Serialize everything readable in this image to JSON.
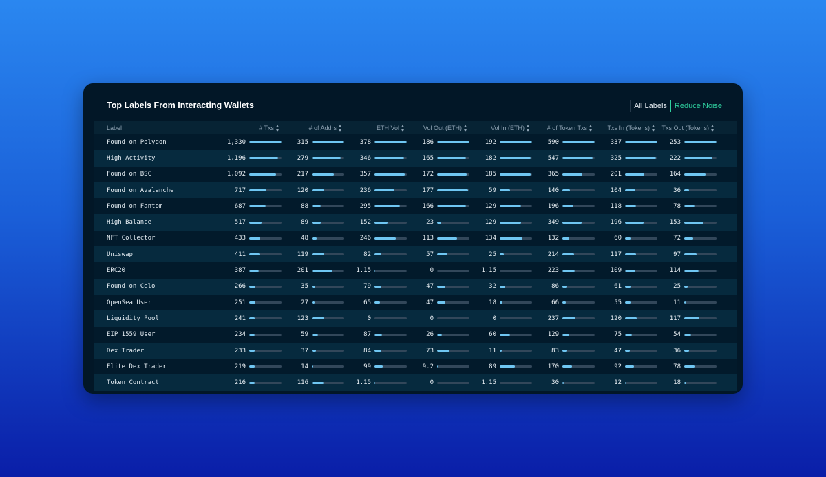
{
  "card": {
    "title": "Top Labels From Interacting Wallets",
    "toggle_all": "All Labels",
    "toggle_reduce": "Reduce Noise"
  },
  "columns": [
    {
      "key": "label",
      "name": "Label"
    },
    {
      "key": "txs",
      "name": "# Txs"
    },
    {
      "key": "addrs",
      "name": "# of Addrs"
    },
    {
      "key": "ethvol",
      "name": "ETH Vol"
    },
    {
      "key": "volout",
      "name": "Vol Out (ETH)"
    },
    {
      "key": "volin",
      "name": "Vol In (ETH)"
    },
    {
      "key": "tokentxs",
      "name": "# of Token Txs"
    },
    {
      "key": "txsin",
      "name": "Txs In (Tokens)"
    },
    {
      "key": "txsout",
      "name": "Txs Out (Tokens)"
    }
  ],
  "rows": [
    {
      "label": "Found on Polygon",
      "cells": [
        {
          "v": "1,330",
          "f": 1.0
        },
        {
          "v": "315",
          "f": 1.0
        },
        {
          "v": "378",
          "f": 1.0
        },
        {
          "v": "186",
          "f": 1.0
        },
        {
          "v": "192",
          "f": 1.0
        },
        {
          "v": "590",
          "f": 1.0
        },
        {
          "v": "337",
          "f": 1.0
        },
        {
          "v": "253",
          "f": 1.0
        }
      ]
    },
    {
      "label": "High Activity",
      "cells": [
        {
          "v": "1,196",
          "f": 0.9
        },
        {
          "v": "279",
          "f": 0.89
        },
        {
          "v": "346",
          "f": 0.92
        },
        {
          "v": "165",
          "f": 0.89
        },
        {
          "v": "182",
          "f": 0.95
        },
        {
          "v": "547",
          "f": 0.93
        },
        {
          "v": "325",
          "f": 0.96
        },
        {
          "v": "222",
          "f": 0.88
        }
      ]
    },
    {
      "label": "Found on BSC",
      "cells": [
        {
          "v": "1,092",
          "f": 0.82
        },
        {
          "v": "217",
          "f": 0.69
        },
        {
          "v": "357",
          "f": 0.94
        },
        {
          "v": "172",
          "f": 0.92
        },
        {
          "v": "185",
          "f": 0.96
        },
        {
          "v": "365",
          "f": 0.62
        },
        {
          "v": "201",
          "f": 0.6
        },
        {
          "v": "164",
          "f": 0.65
        }
      ]
    },
    {
      "label": "Found on Avalanche",
      "cells": [
        {
          "v": "717",
          "f": 0.54
        },
        {
          "v": "120",
          "f": 0.38
        },
        {
          "v": "236",
          "f": 0.62
        },
        {
          "v": "177",
          "f": 0.95
        },
        {
          "v": "59",
          "f": 0.31
        },
        {
          "v": "140",
          "f": 0.24
        },
        {
          "v": "104",
          "f": 0.31
        },
        {
          "v": "36",
          "f": 0.14
        }
      ]
    },
    {
      "label": "Found on Fantom",
      "cells": [
        {
          "v": "687",
          "f": 0.52
        },
        {
          "v": "88",
          "f": 0.28
        },
        {
          "v": "295",
          "f": 0.78
        },
        {
          "v": "166",
          "f": 0.89
        },
        {
          "v": "129",
          "f": 0.67
        },
        {
          "v": "196",
          "f": 0.33
        },
        {
          "v": "118",
          "f": 0.35
        },
        {
          "v": "78",
          "f": 0.31
        }
      ]
    },
    {
      "label": "High Balance",
      "cells": [
        {
          "v": "517",
          "f": 0.39
        },
        {
          "v": "89",
          "f": 0.28
        },
        {
          "v": "152",
          "f": 0.4
        },
        {
          "v": "23",
          "f": 0.12
        },
        {
          "v": "129",
          "f": 0.67
        },
        {
          "v": "349",
          "f": 0.59
        },
        {
          "v": "196",
          "f": 0.58
        },
        {
          "v": "153",
          "f": 0.6
        }
      ]
    },
    {
      "label": "NFT Collector",
      "cells": [
        {
          "v": "433",
          "f": 0.33
        },
        {
          "v": "48",
          "f": 0.15
        },
        {
          "v": "246",
          "f": 0.65
        },
        {
          "v": "113",
          "f": 0.61
        },
        {
          "v": "134",
          "f": 0.7
        },
        {
          "v": "132",
          "f": 0.22
        },
        {
          "v": "60",
          "f": 0.18
        },
        {
          "v": "72",
          "f": 0.28
        }
      ]
    },
    {
      "label": "Uniswap",
      "cells": [
        {
          "v": "411",
          "f": 0.31
        },
        {
          "v": "119",
          "f": 0.38
        },
        {
          "v": "82",
          "f": 0.22
        },
        {
          "v": "57",
          "f": 0.31
        },
        {
          "v": "25",
          "f": 0.13
        },
        {
          "v": "214",
          "f": 0.36
        },
        {
          "v": "117",
          "f": 0.35
        },
        {
          "v": "97",
          "f": 0.38
        }
      ]
    },
    {
      "label": "ERC20",
      "cells": [
        {
          "v": "387",
          "f": 0.29
        },
        {
          "v": "201",
          "f": 0.64
        },
        {
          "v": "1.15",
          "f": 0.003
        },
        {
          "v": "0",
          "f": 0.0
        },
        {
          "v": "1.15",
          "f": 0.006
        },
        {
          "v": "223",
          "f": 0.38
        },
        {
          "v": "109",
          "f": 0.32
        },
        {
          "v": "114",
          "f": 0.45
        }
      ]
    },
    {
      "label": "Found on Celo",
      "cells": [
        {
          "v": "266",
          "f": 0.2
        },
        {
          "v": "35",
          "f": 0.11
        },
        {
          "v": "79",
          "f": 0.21
        },
        {
          "v": "47",
          "f": 0.25
        },
        {
          "v": "32",
          "f": 0.17
        },
        {
          "v": "86",
          "f": 0.15
        },
        {
          "v": "61",
          "f": 0.18
        },
        {
          "v": "25",
          "f": 0.1
        }
      ]
    },
    {
      "label": "OpenSea User",
      "cells": [
        {
          "v": "251",
          "f": 0.19
        },
        {
          "v": "27",
          "f": 0.09
        },
        {
          "v": "65",
          "f": 0.17
        },
        {
          "v": "47",
          "f": 0.25
        },
        {
          "v": "18",
          "f": 0.09
        },
        {
          "v": "66",
          "f": 0.11
        },
        {
          "v": "55",
          "f": 0.16
        },
        {
          "v": "11",
          "f": 0.04
        }
      ]
    },
    {
      "label": "Liquidity Pool",
      "cells": [
        {
          "v": "241",
          "f": 0.18
        },
        {
          "v": "123",
          "f": 0.39
        },
        {
          "v": "0",
          "f": 0.0
        },
        {
          "v": "0",
          "f": 0.0
        },
        {
          "v": "0",
          "f": 0.0
        },
        {
          "v": "237",
          "f": 0.4
        },
        {
          "v": "120",
          "f": 0.36
        },
        {
          "v": "117",
          "f": 0.46
        }
      ]
    },
    {
      "label": "EIP 1559 User",
      "cells": [
        {
          "v": "234",
          "f": 0.18
        },
        {
          "v": "59",
          "f": 0.19
        },
        {
          "v": "87",
          "f": 0.23
        },
        {
          "v": "26",
          "f": 0.14
        },
        {
          "v": "60",
          "f": 0.31
        },
        {
          "v": "129",
          "f": 0.22
        },
        {
          "v": "75",
          "f": 0.22
        },
        {
          "v": "54",
          "f": 0.21
        }
      ]
    },
    {
      "label": "Dex Trader",
      "cells": [
        {
          "v": "233",
          "f": 0.18
        },
        {
          "v": "37",
          "f": 0.12
        },
        {
          "v": "84",
          "f": 0.22
        },
        {
          "v": "73",
          "f": 0.39
        },
        {
          "v": "11",
          "f": 0.06
        },
        {
          "v": "83",
          "f": 0.14
        },
        {
          "v": "47",
          "f": 0.14
        },
        {
          "v": "36",
          "f": 0.14
        }
      ]
    },
    {
      "label": "Elite Dex Trader",
      "cells": [
        {
          "v": "219",
          "f": 0.16
        },
        {
          "v": "14",
          "f": 0.04
        },
        {
          "v": "99",
          "f": 0.26
        },
        {
          "v": "9.2",
          "f": 0.05
        },
        {
          "v": "89",
          "f": 0.46
        },
        {
          "v": "170",
          "f": 0.29
        },
        {
          "v": "92",
          "f": 0.27
        },
        {
          "v": "78",
          "f": 0.31
        }
      ]
    },
    {
      "label": "Token Contract",
      "cells": [
        {
          "v": "216",
          "f": 0.16
        },
        {
          "v": "116",
          "f": 0.37
        },
        {
          "v": "1.15",
          "f": 0.003
        },
        {
          "v": "0",
          "f": 0.0
        },
        {
          "v": "1.15",
          "f": 0.006
        },
        {
          "v": "30",
          "f": 0.05
        },
        {
          "v": "12",
          "f": 0.04
        },
        {
          "v": "18",
          "f": 0.07
        }
      ]
    }
  ]
}
